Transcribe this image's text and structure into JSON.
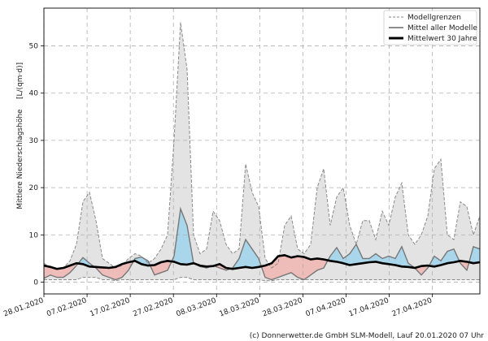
{
  "chart_data": {
    "type": "area",
    "ylabel": "Mittlere Niederschlagshöhe",
    "ylabel_unit": "[L/(qm·d)]",
    "ylim": [
      -2.5,
      58
    ],
    "yticks": [
      0,
      10,
      20,
      30,
      40,
      50
    ],
    "x_start": "28.01.2020",
    "x_end": "08.05.2020",
    "xticks": [
      "28.01.2020",
      "07.02.2020",
      "17.02.2020",
      "27.02.2020",
      "08.03.2020",
      "18.03.2020",
      "28.03.2020",
      "07.04.2020",
      "17.04.2020",
      "27.04.2020"
    ],
    "grid": true,
    "legend_position": "top-right",
    "legend": [
      {
        "label": "Modellgrenzen",
        "style": "dashed",
        "color": "#8a8a8a"
      },
      {
        "label": "Mittel aller Modelle",
        "style": "solid",
        "color": "#666666"
      },
      {
        "label": "Mittelwert 30 Jahre",
        "style": "solid-thick",
        "color": "#000000"
      }
    ],
    "colors": {
      "band_fill": "#e3e3e3",
      "wetter": "#a9d6ea",
      "drier": "#efbdb9",
      "mean": "#777777",
      "clim": "#000000"
    },
    "series": [
      {
        "name": "Modellgrenzen (oben)",
        "values": [
          4,
          3,
          2.8,
          3,
          4.5,
          8,
          17,
          19,
          13,
          5,
          4,
          3,
          3.5,
          5,
          6,
          5.5,
          4,
          5,
          7,
          10,
          30,
          55,
          45,
          10,
          6,
          7,
          15,
          13,
          8,
          6,
          7,
          25,
          19,
          16,
          5,
          3,
          4,
          12,
          14,
          7,
          6,
          8,
          20,
          24,
          12,
          18,
          20,
          12,
          8,
          13,
          13,
          9,
          15,
          12,
          18,
          21,
          10,
          8,
          10,
          14,
          24,
          26,
          10,
          9,
          17,
          16,
          10,
          14
        ]
      },
      {
        "name": "Modellgrenzen (unten)",
        "values": [
          0.5,
          0.5,
          0.5,
          0.5,
          0.5,
          0.5,
          1,
          1,
          1,
          0.5,
          0.5,
          0.3,
          0.5,
          0.5,
          0.5,
          0.5,
          0.5,
          0.5,
          0.5,
          0.5,
          0.5,
          1,
          1,
          0.5,
          0.5,
          0.5,
          0.5,
          0.5,
          0.5,
          0.5,
          0.5,
          0.5,
          0.5,
          0.5,
          0.3,
          0.3,
          0.5,
          0.5,
          0.5,
          0.5,
          0.5,
          0.5,
          0.5,
          0.5,
          0.5,
          0.5,
          0.5,
          0.5,
          0.5,
          0.5,
          0.5,
          0.5,
          0.5,
          0.5,
          0.5,
          0.5,
          0.5,
          0.5,
          0.5,
          0.5,
          0.5,
          0.5,
          0.5,
          0.5,
          0.5,
          0.5,
          0.5,
          0.5
        ]
      },
      {
        "name": "Mittel aller Modelle",
        "values": [
          0.8,
          1.5,
          1,
          1,
          2,
          3.5,
          5.2,
          4,
          3,
          1.5,
          1,
          0.5,
          1,
          2.5,
          5,
          5.3,
          4.5,
          1.5,
          2,
          2.5,
          5.5,
          15.5,
          12,
          4,
          3.3,
          3,
          3.5,
          3,
          2.5,
          3,
          5,
          9,
          7,
          5,
          1,
          0.5,
          1,
          1.5,
          2,
          1,
          0.5,
          1.5,
          2.5,
          3,
          5.5,
          7.3,
          5,
          6,
          8,
          5,
          5,
          6,
          5,
          5.5,
          5,
          7.5,
          4,
          3,
          1.5,
          3,
          5.5,
          4.5,
          6.5,
          7,
          4,
          2.5,
          7.5,
          7
        ]
      },
      {
        "name": "Mittelwert 30 Jahre",
        "values": [
          3.5,
          3.2,
          2.8,
          3,
          3.5,
          4,
          3.8,
          3.3,
          3.2,
          3.1,
          3,
          3.2,
          3.8,
          4.2,
          4.5,
          3.8,
          3.5,
          3.6,
          4.2,
          4.5,
          4.3,
          3.8,
          3.7,
          4,
          3.5,
          3.3,
          3.4,
          3.8,
          3,
          2.8,
          3,
          3.2,
          3,
          3.2,
          3.5,
          4,
          5.5,
          5.7,
          5.2,
          5.5,
          5.3,
          4.8,
          5,
          4.8,
          4.5,
          4.3,
          4,
          3.6,
          3.8,
          4,
          4.2,
          4.3,
          4,
          3.8,
          3.6,
          3.3,
          3.2,
          3,
          3.4,
          3.5,
          3.3,
          3.6,
          4,
          4.2,
          4.5,
          4.3,
          4,
          4.2
        ]
      }
    ]
  },
  "credit": "(c) Donnerwetter.de GmbH SLM-Modell, Lauf 20.01.2020 07 Uhr"
}
